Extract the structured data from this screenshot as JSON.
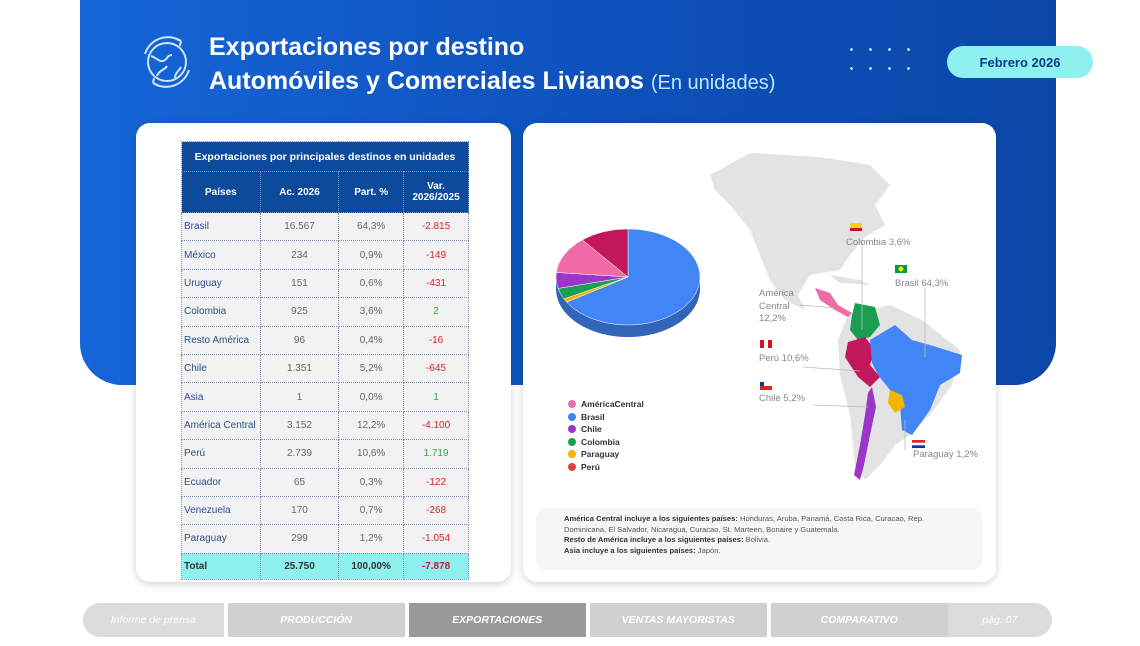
{
  "header": {
    "title_line1": "Exportaciones por destino",
    "title_line2": "Automóviles y Comerciales Livianos",
    "title_unit": "(En unidades)",
    "period": "Febrero 2026",
    "icon": "globe-refresh-icon"
  },
  "table": {
    "caption": "Exportaciones por principales destinos en unidades",
    "columns": [
      "Países",
      "Ac. 2026",
      "Part. %",
      "Var. 2026/2025"
    ],
    "rows": [
      [
        "Brasil",
        "16.567",
        "64,3%",
        "-2.815"
      ],
      [
        "México",
        "234",
        "0,9%",
        "-149"
      ],
      [
        "Uruguay",
        "151",
        "0,6%",
        "-431"
      ],
      [
        "Colombia",
        "925",
        "3,6%",
        "2"
      ],
      [
        "Resto América",
        "96",
        "0,4%",
        "-16"
      ],
      [
        "Chile",
        "1.351",
        "5,2%",
        "-645"
      ],
      [
        "Asia",
        "1",
        "0,0%",
        "1"
      ],
      [
        "América Central",
        "3.152",
        "12,2%",
        "-4.100"
      ],
      [
        "Perú",
        "2.739",
        "10,6%",
        "1.719"
      ],
      [
        "Ecuador",
        "65",
        "0,3%",
        "-122"
      ],
      [
        "Venezuela",
        "170",
        "0,7%",
        "-268"
      ],
      [
        "Paraguay",
        "299",
        "1,2%",
        "-1.054"
      ]
    ],
    "total": [
      "Total",
      "25.750",
      "100,00%",
      "-7.878"
    ]
  },
  "chart_data": {
    "type": "pie",
    "three_d": true,
    "series": [
      {
        "name": "AméricaCentral",
        "value": 12.2,
        "color": "#f06ba8"
      },
      {
        "name": "Brasil",
        "value": 64.3,
        "color": "#4285f4"
      },
      {
        "name": "Chile",
        "value": 5.2,
        "color": "#9b36c8"
      },
      {
        "name": "Colombia",
        "value": 3.6,
        "color": "#1a9e50"
      },
      {
        "name": "Paraguay",
        "value": 1.2,
        "color": "#f5b400"
      },
      {
        "name": "Perú",
        "value": 10.6,
        "color": "#c2185b"
      }
    ],
    "legend": "bottom"
  },
  "map": {
    "labels": {
      "colombia": "Colombia 3,6%",
      "brasil": "Brasil 64,3%",
      "america_central_1": "América",
      "america_central_2": "Central",
      "america_central_3": "12,2%",
      "peru": "Perú 10,6%",
      "chile": "Chile 5,2%",
      "paraguay": "Paraguay 1,2%"
    }
  },
  "notes": {
    "ac_label": "América Central incluye a los siguientes países:",
    "ac_text": " Honduras, Aruba, Panamá, Costa Rica, Curacao, Rep. Dominicana, El Salvador, Nicaragua, Curacao, St. Marteen, Bonaire y Guatemala.",
    "ra_label": "Resto de América incluye a los siguientes países:",
    "ra_text": " Bolivia.",
    "asia_label": "Asia incluye a los siguientes países:",
    "asia_text": " Japón."
  },
  "nav": {
    "items": [
      "Informe de prensa",
      "PRODUCCIÓN",
      "EXPORTACIONES",
      "VENTAS MAYORISTAS",
      "COMPARATIVO",
      "pág. 07"
    ],
    "active": "EXPORTACIONES"
  }
}
